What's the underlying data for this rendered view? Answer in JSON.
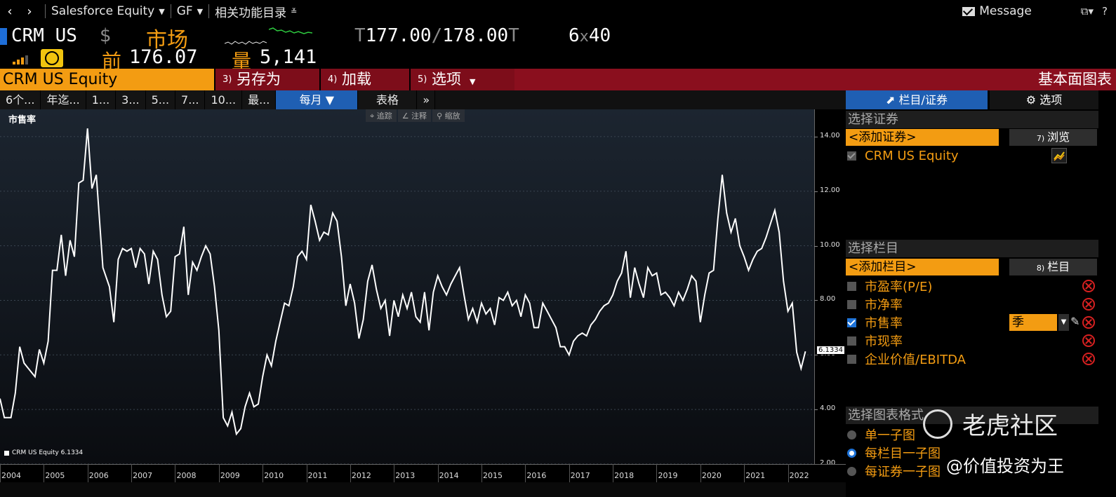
{
  "topbar": {
    "back": "‹",
    "forward": "›",
    "security_menu": "Salesforce Equity",
    "gf_menu": "GF",
    "related_menu": "相关功能目录",
    "message": "Message",
    "help": "?"
  },
  "quote": {
    "ticker": "CRM US",
    "currency": "$",
    "market_label": "市场",
    "prev_label": "前",
    "prev_value": "176.07",
    "vol_label": "量",
    "vol_value": "5,141",
    "bid_prefix": "T",
    "bid": "177.00",
    "slash": "/",
    "ask": "178.00",
    "ask_suffix": "T",
    "size_bid": "6",
    "size_x": "x",
    "size_ask": "40"
  },
  "funcrow": {
    "security": "CRM US Equity",
    "buttons": [
      {
        "num": "3)",
        "label": "另存为"
      },
      {
        "num": "4)",
        "label": "加载"
      },
      {
        "num": "5)",
        "label": "选项"
      }
    ],
    "title": "基本面图表"
  },
  "periods": [
    "6个...",
    "年迄...",
    "1...",
    "3...",
    "5...",
    "7...",
    "10...",
    "最..."
  ],
  "monthly": "每月 ▼",
  "table_tab": "表格",
  "more": "»",
  "chart_tools": [
    "追踪",
    "注释",
    "缩放"
  ],
  "chart_data": {
    "type": "line",
    "title": "市售率",
    "series": [
      {
        "name": "CRM US Equity",
        "last": "6.1334",
        "color": "#ffffff",
        "points": [
          [
            2004.0,
            4.4
          ],
          [
            2004.1,
            3.7
          ],
          [
            2004.25,
            3.7
          ],
          [
            2004.35,
            4.6
          ],
          [
            2004.45,
            6.3
          ],
          [
            2004.55,
            5.7
          ],
          [
            2004.65,
            5.5
          ],
          [
            2004.8,
            5.2
          ],
          [
            2004.9,
            6.2
          ],
          [
            2005.0,
            5.7
          ],
          [
            2005.1,
            6.5
          ],
          [
            2005.2,
            9.1
          ],
          [
            2005.3,
            9.1
          ],
          [
            2005.4,
            10.4
          ],
          [
            2005.5,
            8.9
          ],
          [
            2005.6,
            10.2
          ],
          [
            2005.7,
            9.6
          ],
          [
            2005.8,
            12.3
          ],
          [
            2005.9,
            12.4
          ],
          [
            2006.0,
            14.3
          ],
          [
            2006.1,
            12.1
          ],
          [
            2006.2,
            12.6
          ],
          [
            2006.35,
            9.2
          ],
          [
            2006.5,
            8.5
          ],
          [
            2006.6,
            7.2
          ],
          [
            2006.7,
            9.5
          ],
          [
            2006.8,
            9.9
          ],
          [
            2006.9,
            9.8
          ],
          [
            2007.0,
            9.9
          ],
          [
            2007.1,
            9.2
          ],
          [
            2007.2,
            9.9
          ],
          [
            2007.3,
            9.7
          ],
          [
            2007.4,
            8.6
          ],
          [
            2007.5,
            9.8
          ],
          [
            2007.6,
            9.5
          ],
          [
            2007.7,
            8.2
          ],
          [
            2007.8,
            7.4
          ],
          [
            2007.9,
            7.6
          ],
          [
            2008.0,
            9.6
          ],
          [
            2008.1,
            9.7
          ],
          [
            2008.2,
            10.7
          ],
          [
            2008.3,
            8.2
          ],
          [
            2008.4,
            9.4
          ],
          [
            2008.5,
            9.1
          ],
          [
            2008.6,
            9.6
          ],
          [
            2008.7,
            10.0
          ],
          [
            2008.8,
            9.7
          ],
          [
            2008.9,
            8.5
          ],
          [
            2009.0,
            6.9
          ],
          [
            2009.1,
            3.7
          ],
          [
            2009.2,
            3.4
          ],
          [
            2009.3,
            3.9
          ],
          [
            2009.4,
            3.1
          ],
          [
            2009.5,
            3.3
          ],
          [
            2009.6,
            4.1
          ],
          [
            2009.7,
            4.6
          ],
          [
            2009.8,
            4.1
          ],
          [
            2009.9,
            4.2
          ],
          [
            2010.0,
            5.2
          ],
          [
            2010.1,
            6.0
          ],
          [
            2010.2,
            5.6
          ],
          [
            2010.3,
            6.5
          ],
          [
            2010.4,
            7.2
          ],
          [
            2010.5,
            7.9
          ],
          [
            2010.6,
            7.8
          ],
          [
            2010.7,
            8.5
          ],
          [
            2010.8,
            9.6
          ],
          [
            2010.9,
            9.8
          ],
          [
            2011.0,
            9.5
          ],
          [
            2011.1,
            11.5
          ],
          [
            2011.2,
            10.9
          ],
          [
            2011.3,
            10.2
          ],
          [
            2011.4,
            10.5
          ],
          [
            2011.5,
            10.4
          ],
          [
            2011.6,
            11.2
          ],
          [
            2011.7,
            10.9
          ],
          [
            2011.8,
            9.6
          ],
          [
            2011.9,
            7.8
          ],
          [
            2012.0,
            8.6
          ],
          [
            2012.1,
            7.9
          ],
          [
            2012.2,
            6.6
          ],
          [
            2012.3,
            7.3
          ],
          [
            2012.4,
            8.7
          ],
          [
            2012.5,
            9.3
          ],
          [
            2012.6,
            8.4
          ],
          [
            2012.7,
            7.7
          ],
          [
            2012.8,
            8.0
          ],
          [
            2012.9,
            6.7
          ],
          [
            2013.0,
            8.0
          ],
          [
            2013.1,
            7.4
          ],
          [
            2013.2,
            8.2
          ],
          [
            2013.3,
            7.7
          ],
          [
            2013.4,
            8.3
          ],
          [
            2013.5,
            7.4
          ],
          [
            2013.6,
            7.2
          ],
          [
            2013.7,
            8.3
          ],
          [
            2013.8,
            6.9
          ],
          [
            2013.9,
            8.3
          ],
          [
            2014.0,
            8.9
          ],
          [
            2014.1,
            8.5
          ],
          [
            2014.2,
            8.2
          ],
          [
            2014.3,
            8.6
          ],
          [
            2014.4,
            8.9
          ],
          [
            2014.5,
            9.2
          ],
          [
            2014.6,
            8.2
          ],
          [
            2014.7,
            7.3
          ],
          [
            2014.8,
            7.7
          ],
          [
            2014.9,
            7.2
          ],
          [
            2015.0,
            7.9
          ],
          [
            2015.1,
            7.5
          ],
          [
            2015.2,
            7.7
          ],
          [
            2015.3,
            7.1
          ],
          [
            2015.4,
            8.1
          ],
          [
            2015.5,
            8.0
          ],
          [
            2015.6,
            8.3
          ],
          [
            2015.7,
            7.8
          ],
          [
            2015.8,
            8.0
          ],
          [
            2015.9,
            7.4
          ],
          [
            2016.0,
            8.2
          ],
          [
            2016.1,
            7.9
          ],
          [
            2016.2,
            7.0
          ],
          [
            2016.3,
            7.0
          ],
          [
            2016.4,
            7.9
          ],
          [
            2016.5,
            7.6
          ],
          [
            2016.6,
            7.3
          ],
          [
            2016.7,
            7.0
          ],
          [
            2016.8,
            6.3
          ],
          [
            2016.9,
            6.3
          ],
          [
            2017.0,
            6.0
          ],
          [
            2017.1,
            6.5
          ],
          [
            2017.2,
            6.7
          ],
          [
            2017.3,
            6.8
          ],
          [
            2017.4,
            6.7
          ],
          [
            2017.5,
            7.1
          ],
          [
            2017.6,
            7.3
          ],
          [
            2017.7,
            7.6
          ],
          [
            2017.8,
            7.8
          ],
          [
            2017.9,
            7.9
          ],
          [
            2018.0,
            8.2
          ],
          [
            2018.1,
            8.7
          ],
          [
            2018.2,
            9.0
          ],
          [
            2018.3,
            9.8
          ],
          [
            2018.4,
            8.1
          ],
          [
            2018.5,
            9.2
          ],
          [
            2018.6,
            8.6
          ],
          [
            2018.7,
            8.1
          ],
          [
            2018.8,
            9.2
          ],
          [
            2018.9,
            8.9
          ],
          [
            2019.0,
            9.0
          ],
          [
            2019.1,
            8.2
          ],
          [
            2019.2,
            8.3
          ],
          [
            2019.3,
            8.1
          ],
          [
            2019.4,
            7.8
          ],
          [
            2019.5,
            8.3
          ],
          [
            2019.6,
            8.0
          ],
          [
            2019.7,
            8.4
          ],
          [
            2019.8,
            8.9
          ],
          [
            2019.9,
            8.7
          ],
          [
            2020.0,
            7.2
          ],
          [
            2020.1,
            8.2
          ],
          [
            2020.2,
            9.0
          ],
          [
            2020.3,
            9.1
          ],
          [
            2020.4,
            11.0
          ],
          [
            2020.5,
            12.6
          ],
          [
            2020.6,
            11.2
          ],
          [
            2020.7,
            10.5
          ],
          [
            2020.8,
            11.0
          ],
          [
            2020.9,
            10.0
          ],
          [
            2021.0,
            9.6
          ],
          [
            2021.1,
            9.1
          ],
          [
            2021.2,
            9.5
          ],
          [
            2021.3,
            9.8
          ],
          [
            2021.4,
            9.9
          ],
          [
            2021.5,
            10.3
          ],
          [
            2021.6,
            10.8
          ],
          [
            2021.7,
            11.3
          ],
          [
            2021.8,
            10.5
          ],
          [
            2021.9,
            8.7
          ],
          [
            2022.0,
            7.6
          ],
          [
            2022.1,
            7.9
          ],
          [
            2022.2,
            6.1
          ],
          [
            2022.3,
            5.5
          ],
          [
            2022.4,
            6.13
          ]
        ]
      }
    ],
    "x_ticks": [
      "2004",
      "2005",
      "2006",
      "2007",
      "2008",
      "2009",
      "2010",
      "2011",
      "2012",
      "2013",
      "2014",
      "2015",
      "2016",
      "2017",
      "2018",
      "2019",
      "2020",
      "2021",
      "2022"
    ],
    "y_ticks": [
      "2.00",
      "4.00",
      "6.00",
      "8.00",
      "10.00",
      "12.00",
      "14.00"
    ],
    "ylim": [
      2,
      15
    ],
    "xlim": [
      2004,
      2022.6
    ],
    "grid": true,
    "legend": "bottom-left"
  },
  "legend_text": "CRM US Equity  6.1334",
  "last_tag": "6.1334",
  "right": {
    "tab_active": "栏目/证券",
    "tab_other": "选项",
    "sel_security": "选择证券",
    "add_security": "<添加证券>",
    "browse_num": "7)",
    "browse": "浏览",
    "security_item": "CRM US Equity",
    "sel_column": "选择栏目",
    "add_column": "<添加栏目>",
    "column_num": "8)",
    "column_btn": "栏目",
    "columns": [
      "市盈率(P/E)",
      "市净率",
      "市售率",
      "市现率",
      "企业价值/EBITDA"
    ],
    "period_value": "季",
    "sel_format": "选择图表格式",
    "formats": [
      "单一子图",
      "每栏目一子图",
      "每证券一子图"
    ]
  },
  "watermark": {
    "brand": "老虎社区",
    "author": "@价值投资为王"
  }
}
